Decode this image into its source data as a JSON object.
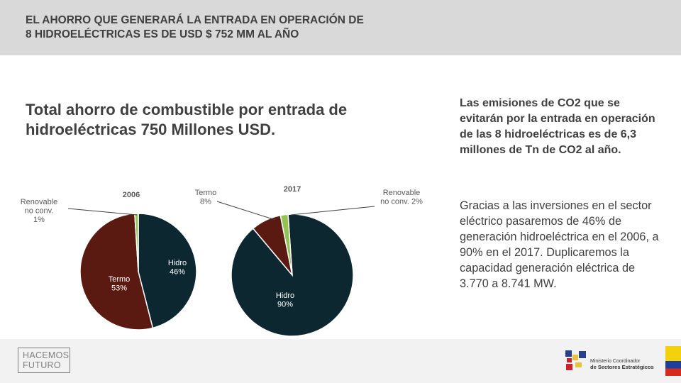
{
  "header": {
    "title_line1": "EL AHORRO QUE GENERARÁ LA ENTRADA EN OPERACIÓN DE",
    "title_line2": "8 HIDROELÉCTRICAS ES DE USD $ 752 MM AL AÑO"
  },
  "main": {
    "subtitle": "Total ahorro de combustible por entrada de hidroeléctricas 750 Millones USD."
  },
  "right_panel": {
    "emissions_text": "Las emisiones de CO2 que se evitarán por la entrada en operación de las 8 hidroeléctricas es de 6,3 millones de Tn de CO2  al año.",
    "investment_text": "Gracias a las inversiones en el sector eléctrico pasaremos de 46% de generación hidroeléctrica en el 2006, a 90% en el 2017. Duplicaremos la capacidad generación eléctrica de 3.770 a 8.741 MW."
  },
  "footer": {
    "logo_line1": "HACEMOS",
    "logo_line2": "FUTURO",
    "ministry_line1": "Ministerio Coordinador",
    "ministry_line2": "de Sectores Estratégicos"
  },
  "colors": {
    "hidro": "#0d2731",
    "termo": "#5a1a12",
    "renovable": "#92c353",
    "header_bg": "#d9d9d9",
    "text": "#404040"
  },
  "chart_data": [
    {
      "type": "pie",
      "title": "2006",
      "categories": [
        "Hidro",
        "Termo",
        "Renovable no conv."
      ],
      "values": [
        46,
        53,
        1
      ],
      "labels": [
        "Hidro\n46%",
        "Termo\n53%",
        "Renovable\nno conv.\n1%"
      ]
    },
    {
      "type": "pie",
      "title": "2017",
      "categories": [
        "Hidro",
        "Termo",
        "Renovable no conv."
      ],
      "values": [
        90,
        8,
        2
      ],
      "labels": [
        "Hidro\n90%",
        "Termo\n8%",
        "Renovable\nno conv.  2%"
      ]
    }
  ]
}
